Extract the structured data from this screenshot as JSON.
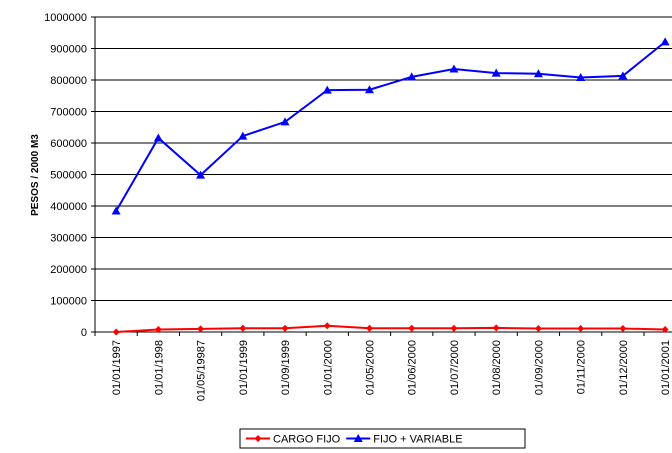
{
  "chart_data": {
    "type": "line",
    "y_label": "PESOS / 2000 M3",
    "categories": [
      "01/01/1997",
      "01/01/1998",
      "01/05/19987",
      "01/01/1999",
      "01/09/1999",
      "01/01/2000",
      "01/05/2000",
      "01/06/2000",
      "01/07/2000",
      "01/08/2000",
      "01/09/2000",
      "01/11/2000",
      "01/12/2000",
      "01/01/2001"
    ],
    "series": [
      {
        "name": "CARGO FIJO",
        "color": "#ff0000",
        "marker": "diamond",
        "values": [
          0,
          8000,
          10000,
          12000,
          12000,
          20000,
          12000,
          12000,
          12000,
          13000,
          11000,
          11000,
          11000,
          8000
        ]
      },
      {
        "name": "FIJO + VARIABLE",
        "color": "#0000ff",
        "marker": "triangle",
        "values": [
          384000,
          616000,
          498000,
          622000,
          667000,
          768000,
          769000,
          810000,
          835000,
          822000,
          820000,
          808000,
          813000,
          921000
        ]
      }
    ],
    "ylim": [
      0,
      1000000
    ],
    "yticks": [
      0,
      100000,
      200000,
      300000,
      400000,
      500000,
      600000,
      700000,
      800000,
      900000,
      1000000
    ],
    "grid": true,
    "legend": "bottom"
  }
}
